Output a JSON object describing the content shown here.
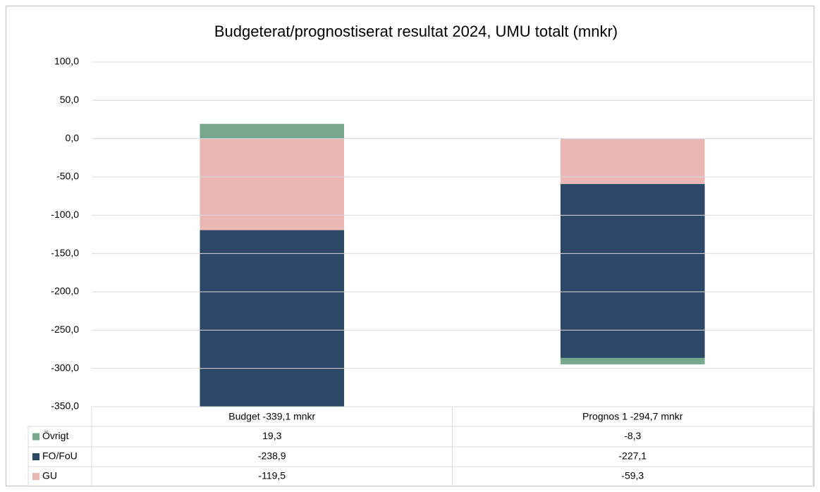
{
  "chart_data": {
    "type": "stacked_bar",
    "title": "Budgeterat/prognostiserat resultat 2024, UMU totalt (mnkr)",
    "categories": [
      "Budget -339,1 mnkr",
      "Prognos 1 -294,7 mnkr"
    ],
    "series": [
      {
        "name": "Övrigt",
        "color": "#76a98c",
        "values": [
          19.3,
          -8.3
        ],
        "value_labels": [
          "19,3",
          "-8,3"
        ]
      },
      {
        "name": "FO/FoU",
        "color": "#2c4866",
        "values": [
          -238.9,
          -227.1
        ],
        "value_labels": [
          "-238,9",
          "-227,1"
        ]
      },
      {
        "name": "GU",
        "color": "#e9b8b5",
        "values": [
          -119.5,
          -59.3
        ],
        "value_labels": [
          "-119,5",
          "-59,3"
        ]
      }
    ],
    "ylim": [
      -350,
      100
    ],
    "yticks": [
      {
        "value": 100,
        "label": "100,0"
      },
      {
        "value": 50,
        "label": "50,0"
      },
      {
        "value": 0,
        "label": "0,0"
      },
      {
        "value": -50,
        "label": "-50,0"
      },
      {
        "value": -100,
        "label": "-100,0"
      },
      {
        "value": -150,
        "label": "-150,0"
      },
      {
        "value": -200,
        "label": "-200,0"
      },
      {
        "value": -250,
        "label": "-250,0"
      },
      {
        "value": -300,
        "label": "-300,0"
      },
      {
        "value": -350,
        "label": "-350,0"
      }
    ],
    "grid": true
  }
}
